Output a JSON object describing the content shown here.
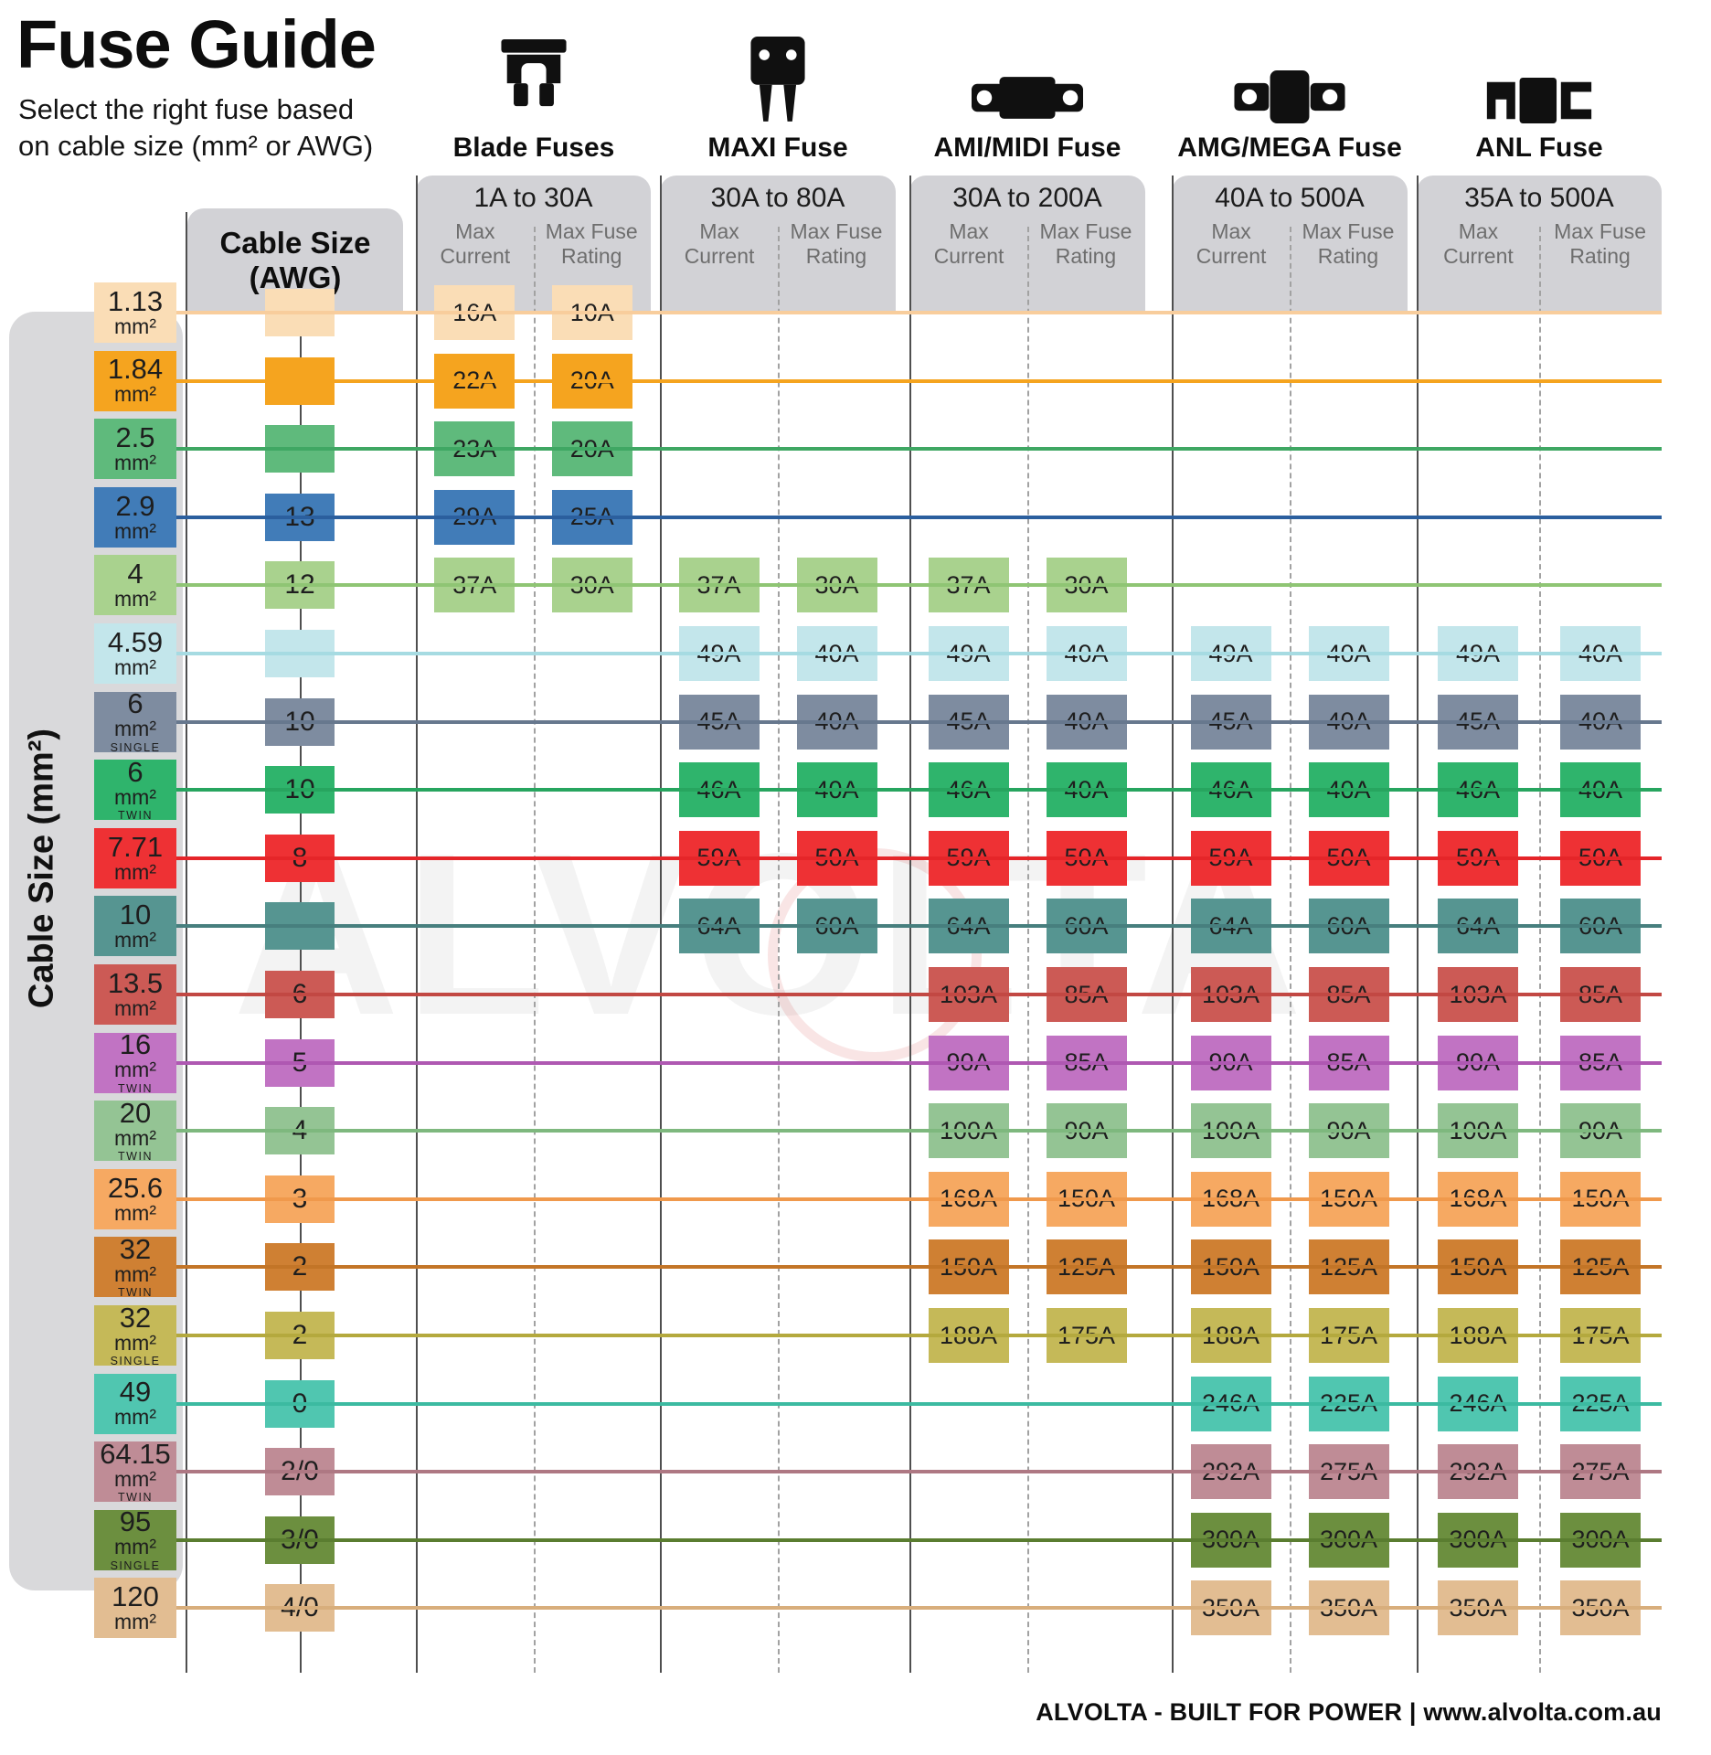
{
  "header": {
    "title": "Fuse Guide",
    "subtitle_line1": "Select the right fuse based",
    "subtitle_line2": "on cable size (mm² or AWG)"
  },
  "axis": {
    "left_label": "Cable Size (mm²)",
    "awg_line1": "Cable Size",
    "awg_line2": "(AWG)"
  },
  "col_headers": {
    "max_current": "Max Current",
    "max_fuse_rating": "Max Fuse Rating"
  },
  "watermark": "ALVOLTA",
  "footer": "ALVOLTA - BUILT FOR POWER | www.alvolta.com.au",
  "chart_data": {
    "type": "table",
    "title": "Fuse Guide",
    "row_axis": "Cable Size (mm² or AWG)",
    "columns_per_fuse_type": [
      "Max Current",
      "Max Fuse Rating"
    ],
    "fuse_types": [
      {
        "name": "Blade Fuses",
        "range": "1A to 30A"
      },
      {
        "name": "MAXI Fuse",
        "range": "30A to 80A"
      },
      {
        "name": "AMI/MIDI Fuse",
        "range": "30A to 200A"
      },
      {
        "name": "AMG/MEGA Fuse",
        "range": "40A to 500A"
      },
      {
        "name": "ANL Fuse",
        "range": "35A to 500A"
      }
    ],
    "rows": [
      {
        "size": "1.13",
        "unit": "mm²",
        "variant": "",
        "awg": "",
        "color": "#FADDB6",
        "line_color": "#F8CD9C",
        "cells": [
          [
            "16A",
            "10A"
          ],
          null,
          null,
          null,
          null
        ]
      },
      {
        "size": "1.84",
        "unit": "mm²",
        "variant": "",
        "awg": "",
        "color": "#F5A41F",
        "line_color": "#F5A41F",
        "cells": [
          [
            "22A",
            "20A"
          ],
          null,
          null,
          null,
          null
        ]
      },
      {
        "size": "2.5",
        "unit": "mm²",
        "variant": "",
        "awg": "",
        "color": "#5FBA7C",
        "line_color": "#3FA763",
        "cells": [
          [
            "23A",
            "20A"
          ],
          null,
          null,
          null,
          null
        ]
      },
      {
        "size": "2.9",
        "unit": "mm²",
        "variant": "",
        "awg": "13",
        "color": "#417CB8",
        "line_color": "#2B5F9E",
        "cells": [
          [
            "29A",
            "25A"
          ],
          null,
          null,
          null,
          null
        ]
      },
      {
        "size": "4",
        "unit": "mm²",
        "variant": "",
        "awg": "12",
        "color": "#A9D28E",
        "line_color": "#8FC574",
        "cells": [
          [
            "37A",
            "30A"
          ],
          [
            "37A",
            "30A"
          ],
          [
            "37A",
            "30A"
          ],
          null,
          null
        ]
      },
      {
        "size": "4.59",
        "unit": "mm²",
        "variant": "",
        "awg": "",
        "color": "#C3E6EB",
        "line_color": "#A6DBE2",
        "cells": [
          null,
          [
            "49A",
            "40A"
          ],
          [
            "49A",
            "40A"
          ],
          [
            "49A",
            "40A"
          ],
          [
            "49A",
            "40A"
          ]
        ]
      },
      {
        "size": "6",
        "unit": "mm²",
        "variant": "SINGLE",
        "awg": "10",
        "color": "#7E8CA0",
        "line_color": "#67788E",
        "cells": [
          null,
          [
            "45A",
            "40A"
          ],
          [
            "45A",
            "40A"
          ],
          [
            "45A",
            "40A"
          ],
          [
            "45A",
            "40A"
          ]
        ]
      },
      {
        "size": "6",
        "unit": "mm²",
        "variant": "TWIN",
        "awg": "10",
        "color": "#2FB46C",
        "line_color": "#27A55F",
        "cells": [
          null,
          [
            "46A",
            "40A"
          ],
          [
            "46A",
            "40A"
          ],
          [
            "46A",
            "40A"
          ],
          [
            "46A",
            "40A"
          ]
        ]
      },
      {
        "size": "7.71",
        "unit": "mm²",
        "variant": "",
        "awg": "8",
        "color": "#EE3134",
        "line_color": "#E52529",
        "cells": [
          null,
          [
            "59A",
            "50A"
          ],
          [
            "59A",
            "50A"
          ],
          [
            "59A",
            "50A"
          ],
          [
            "59A",
            "50A"
          ]
        ]
      },
      {
        "size": "10",
        "unit": "mm²",
        "variant": "",
        "awg": "",
        "color": "#569591",
        "line_color": "#477F7E",
        "cells": [
          null,
          [
            "64A",
            "60A"
          ],
          [
            "64A",
            "60A"
          ],
          [
            "64A",
            "60A"
          ],
          [
            "64A",
            "60A"
          ]
        ]
      },
      {
        "size": "13.5",
        "unit": "mm²",
        "variant": "",
        "awg": "6",
        "color": "#CC5A55",
        "line_color": "#C24843",
        "cells": [
          null,
          null,
          [
            "103A",
            "85A"
          ],
          [
            "103A",
            "85A"
          ],
          [
            "103A",
            "85A"
          ]
        ]
      },
      {
        "size": "16",
        "unit": "mm²",
        "variant": "TWIN",
        "awg": "5",
        "color": "#C173C3",
        "line_color": "#AF58B2",
        "cells": [
          null,
          null,
          [
            "90A",
            "85A"
          ],
          [
            "90A",
            "85A"
          ],
          [
            "90A",
            "85A"
          ]
        ]
      },
      {
        "size": "20",
        "unit": "mm²",
        "variant": "TWIN",
        "awg": "4",
        "color": "#94C494",
        "line_color": "#7EB87E",
        "cells": [
          null,
          null,
          [
            "100A",
            "90A"
          ],
          [
            "100A",
            "90A"
          ],
          [
            "100A",
            "90A"
          ]
        ]
      },
      {
        "size": "25.6",
        "unit": "mm²",
        "variant": "",
        "awg": "3",
        "color": "#F6A962",
        "line_color": "#F0994C",
        "cells": [
          null,
          null,
          [
            "168A",
            "150A"
          ],
          [
            "168A",
            "150A"
          ],
          [
            "168A",
            "150A"
          ]
        ]
      },
      {
        "size": "32",
        "unit": "mm²",
        "variant": "TWIN",
        "awg": "2",
        "color": "#CF8033",
        "line_color": "#C37527",
        "cells": [
          null,
          null,
          [
            "150A",
            "125A"
          ],
          [
            "150A",
            "125A"
          ],
          [
            "150A",
            "125A"
          ]
        ]
      },
      {
        "size": "32",
        "unit": "mm²",
        "variant": "SINGLE",
        "awg": "2",
        "color": "#C5B958",
        "line_color": "#B4A93E",
        "cells": [
          null,
          null,
          [
            "188A",
            "175A"
          ],
          [
            "188A",
            "175A"
          ],
          [
            "188A",
            "175A"
          ]
        ]
      },
      {
        "size": "49",
        "unit": "mm²",
        "variant": "",
        "awg": "0",
        "color": "#50C6B0",
        "line_color": "#3CBAA1",
        "cells": [
          null,
          null,
          null,
          [
            "246A",
            "225A"
          ],
          [
            "246A",
            "225A"
          ]
        ]
      },
      {
        "size": "64.15",
        "unit": "mm²",
        "variant": "TWIN",
        "awg": "2/0",
        "color": "#BF8C96",
        "line_color": "#AE7883",
        "cells": [
          null,
          null,
          null,
          [
            "292A",
            "275A"
          ],
          [
            "292A",
            "275A"
          ]
        ]
      },
      {
        "size": "95",
        "unit": "mm²",
        "variant": "SINGLE",
        "awg": "3/0",
        "color": "#6C8F3F",
        "line_color": "#5A7D30",
        "cells": [
          null,
          null,
          null,
          [
            "300A",
            "300A"
          ],
          [
            "300A",
            "300A"
          ]
        ]
      },
      {
        "size": "120",
        "unit": "mm²",
        "variant": "",
        "awg": "4/0",
        "color": "#E2BD92",
        "line_color": "#D8AE7C",
        "cells": [
          null,
          null,
          null,
          [
            "350A",
            "350A"
          ],
          [
            "350A",
            "350A"
          ]
        ]
      }
    ]
  }
}
